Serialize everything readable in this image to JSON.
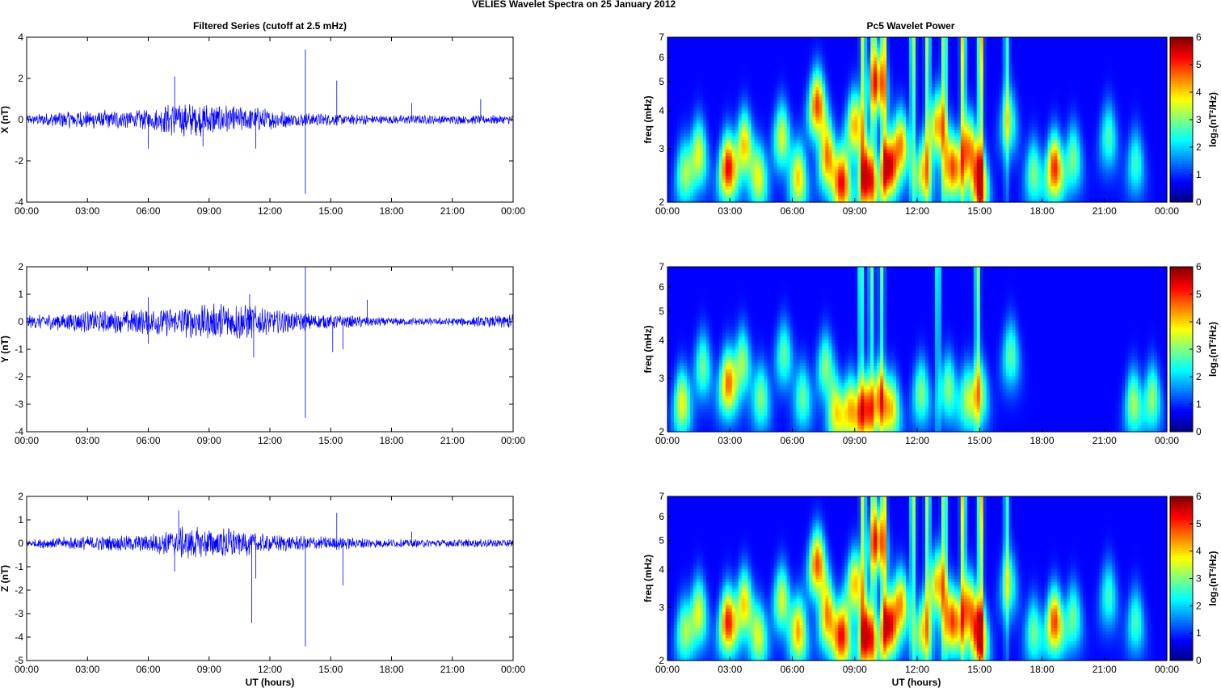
{
  "figure": {
    "suptitle": "VELIES Wavelet Spectra on 25 January   2012",
    "left_title": "Filtered Series (cutoff at 2.5 mHz)",
    "right_title": "Pc5 Wavelet Power",
    "x_label": "UT (hours)"
  },
  "chart_data": [
    {
      "type": "line",
      "id": "x_series",
      "ylabel": "X (nT)",
      "ylim": [
        -4,
        4
      ],
      "yticks": [
        -4,
        -2,
        0,
        2,
        4
      ],
      "xlim_hours": [
        0,
        24
      ],
      "xtick_labels": [
        "00:00",
        "03:00",
        "06:00",
        "09:00",
        "12:00",
        "15:00",
        "18:00",
        "21:00",
        "00:00"
      ],
      "color": "#0000ff",
      "noise_envelope": [
        [
          0,
          0.15
        ],
        [
          2,
          0.3
        ],
        [
          6,
          0.35
        ],
        [
          7.5,
          0.6
        ],
        [
          9,
          0.55
        ],
        [
          11,
          0.45
        ],
        [
          13,
          0.25
        ],
        [
          15,
          0.2
        ],
        [
          18,
          0.15
        ],
        [
          24,
          0.15
        ]
      ],
      "spikes": [
        {
          "t": 7.3,
          "v": 2.1
        },
        {
          "t": 6,
          "v": -1.4
        },
        {
          "t": 8.7,
          "v": -1.3
        },
        {
          "t": 11.3,
          "v": -1.4
        },
        {
          "t": 13.75,
          "v": 3.4
        },
        {
          "t": 13.75,
          "v": -3.6
        },
        {
          "t": 15.3,
          "v": 1.9
        },
        {
          "t": 19,
          "v": 0.8
        },
        {
          "t": 22.4,
          "v": 1.0
        }
      ]
    },
    {
      "type": "line",
      "id": "y_series",
      "ylabel": "Y (nT)",
      "ylim": [
        -4,
        2
      ],
      "yticks": [
        -4,
        -3,
        -2,
        -1,
        0,
        1,
        2
      ],
      "xlim_hours": [
        0,
        24
      ],
      "xtick_labels": [
        "00:00",
        "03:00",
        "06:00",
        "09:00",
        "12:00",
        "15:00",
        "18:00",
        "21:00",
        "00:00"
      ],
      "color": "#0000ff",
      "noise_envelope": [
        [
          0,
          0.15
        ],
        [
          2,
          0.25
        ],
        [
          5,
          0.3
        ],
        [
          8,
          0.4
        ],
        [
          10.5,
          0.5
        ],
        [
          12,
          0.3
        ],
        [
          15,
          0.18
        ],
        [
          18,
          0.1
        ],
        [
          21,
          0.1
        ],
        [
          23,
          0.15
        ],
        [
          24,
          0.2
        ]
      ],
      "spikes": [
        {
          "t": 6,
          "v": 0.9
        },
        {
          "t": 6,
          "v": -0.8
        },
        {
          "t": 11,
          "v": 1.0
        },
        {
          "t": 11.2,
          "v": -1.3
        },
        {
          "t": 13.75,
          "v": 2.0
        },
        {
          "t": 13.75,
          "v": -3.5
        },
        {
          "t": 15.1,
          "v": -1.1
        },
        {
          "t": 15.6,
          "v": -1.0
        },
        {
          "t": 16.8,
          "v": 0.8
        }
      ]
    },
    {
      "type": "line",
      "id": "z_series",
      "ylabel": "Z (nT)",
      "ylim": [
        -5,
        2
      ],
      "yticks": [
        -5,
        -4,
        -3,
        -2,
        -1,
        0,
        1,
        2
      ],
      "xlim_hours": [
        0,
        24
      ],
      "xtick_labels": [
        "00:00",
        "03:00",
        "06:00",
        "09:00",
        "12:00",
        "15:00",
        "18:00",
        "21:00",
        "00:00"
      ],
      "color": "#0000ff",
      "noise_envelope": [
        [
          0,
          0.12
        ],
        [
          2,
          0.2
        ],
        [
          6,
          0.25
        ],
        [
          7.5,
          0.5
        ],
        [
          10,
          0.45
        ],
        [
          12,
          0.25
        ],
        [
          15,
          0.2
        ],
        [
          18,
          0.12
        ],
        [
          24,
          0.12
        ]
      ],
      "spikes": [
        {
          "t": 7.5,
          "v": 1.4
        },
        {
          "t": 7.3,
          "v": -1.2
        },
        {
          "t": 11.1,
          "v": -3.4
        },
        {
          "t": 11.3,
          "v": -1.5
        },
        {
          "t": 13.75,
          "v": -4.4
        },
        {
          "t": 15.3,
          "v": 1.3
        },
        {
          "t": 15.6,
          "v": -1.8
        },
        {
          "t": 19,
          "v": 0.5
        }
      ]
    },
    {
      "type": "heatmap",
      "id": "x_power",
      "ylabel": "freq (mHz)",
      "y_scale": "log",
      "ylim_mhz": [
        2,
        7
      ],
      "yticks": [
        2,
        3,
        4,
        5,
        6,
        7
      ],
      "xlim_hours": [
        0,
        24
      ],
      "xtick_labels": [
        "00:00",
        "03:00",
        "06:00",
        "09:00",
        "12:00",
        "15:00",
        "18:00",
        "21:00",
        "00:00"
      ],
      "colorbar": {
        "label": "log₂(nT²/Hz)",
        "min": 0,
        "max": 6,
        "ticks": [
          0,
          1,
          2,
          3,
          4,
          5,
          6
        ]
      },
      "blobs": [
        {
          "t": 0.8,
          "f": 2.5,
          "p": 2.8
        },
        {
          "t": 1.5,
          "f": 2.9,
          "p": 3.6
        },
        {
          "t": 2.9,
          "f": 2.6,
          "p": 5.6
        },
        {
          "t": 3.7,
          "f": 3.1,
          "p": 4.2
        },
        {
          "t": 4.4,
          "f": 2.4,
          "p": 3.4
        },
        {
          "t": 5.5,
          "f": 3.3,
          "p": 3.5
        },
        {
          "t": 6.3,
          "f": 2.4,
          "p": 4.0
        },
        {
          "t": 7.2,
          "f": 4.2,
          "p": 5.2
        },
        {
          "t": 7.7,
          "f": 2.8,
          "p": 4.6
        },
        {
          "t": 8.4,
          "f": 2.3,
          "p": 5.3
        },
        {
          "t": 9,
          "f": 3.6,
          "p": 4.3
        },
        {
          "t": 9.6,
          "f": 2.4,
          "p": 5.9
        },
        {
          "t": 10.1,
          "f": 5.0,
          "p": 4.3
        },
        {
          "t": 10.6,
          "f": 2.6,
          "p": 5.4
        },
        {
          "t": 11.2,
          "f": 3.1,
          "p": 4.6
        },
        {
          "t": 12.3,
          "f": 2.5,
          "p": 3.8
        },
        {
          "t": 13,
          "f": 3.6,
          "p": 4.4
        },
        {
          "t": 13.7,
          "f": 2.6,
          "p": 4.8
        },
        {
          "t": 14.5,
          "f": 3.0,
          "p": 4.7
        },
        {
          "t": 15,
          "f": 2.3,
          "p": 5.0
        },
        {
          "t": 16.4,
          "f": 3.7,
          "p": 2.6
        },
        {
          "t": 17.6,
          "f": 2.5,
          "p": 2.8
        },
        {
          "t": 18.6,
          "f": 2.6,
          "p": 5.4
        },
        {
          "t": 19.5,
          "f": 2.8,
          "p": 2.8
        },
        {
          "t": 21.2,
          "f": 3.3,
          "p": 2.4
        },
        {
          "t": 22.5,
          "f": 2.7,
          "p": 2.3
        }
      ],
      "streaks": [
        {
          "t": 9.4,
          "p": 3.6
        },
        {
          "t": 9.9,
          "p": 3.2
        },
        {
          "t": 10.4,
          "p": 3.8
        },
        {
          "t": 11.8,
          "p": 3.5
        },
        {
          "t": 12.5,
          "p": 3.4
        },
        {
          "t": 13.3,
          "p": 3.7
        },
        {
          "t": 14.2,
          "p": 4.3
        },
        {
          "t": 15.05,
          "p": 4.8
        },
        {
          "t": 16.3,
          "p": 2.4
        }
      ]
    },
    {
      "type": "heatmap",
      "id": "y_power",
      "ylabel": "freq (mHz)",
      "y_scale": "log",
      "ylim_mhz": [
        2,
        7
      ],
      "yticks": [
        2,
        3,
        4,
        5,
        6,
        7
      ],
      "xlim_hours": [
        0,
        24
      ],
      "xtick_labels": [
        "00:00",
        "03:00",
        "06:00",
        "09:00",
        "12:00",
        "15:00",
        "18:00",
        "21:00",
        "00:00"
      ],
      "colorbar": {
        "label": "log₂(nT²/Hz)",
        "min": 0,
        "max": 6,
        "ticks": [
          0,
          1,
          2,
          3,
          4,
          5,
          6
        ]
      },
      "blobs": [
        {
          "t": 0.7,
          "f": 2.5,
          "p": 3.7
        },
        {
          "t": 1.7,
          "f": 3.3,
          "p": 2.7
        },
        {
          "t": 2.9,
          "f": 2.9,
          "p": 4.6
        },
        {
          "t": 3.6,
          "f": 3.4,
          "p": 3.1
        },
        {
          "t": 4.5,
          "f": 2.6,
          "p": 2.8
        },
        {
          "t": 5.6,
          "f": 3.6,
          "p": 2.6
        },
        {
          "t": 6.5,
          "f": 2.6,
          "p": 2.6
        },
        {
          "t": 7.6,
          "f": 3.3,
          "p": 2.9
        },
        {
          "t": 8.1,
          "f": 2.3,
          "p": 3.6
        },
        {
          "t": 8.8,
          "f": 2.4,
          "p": 4.0
        },
        {
          "t": 9.5,
          "f": 2.4,
          "p": 4.8
        },
        {
          "t": 10.2,
          "f": 2.6,
          "p": 4.1
        },
        {
          "t": 10.8,
          "f": 2.4,
          "p": 3.5
        },
        {
          "t": 12.2,
          "f": 2.7,
          "p": 2.9
        },
        {
          "t": 13.5,
          "f": 2.8,
          "p": 2.9
        },
        {
          "t": 14.4,
          "f": 2.6,
          "p": 2.8
        },
        {
          "t": 15,
          "f": 2.7,
          "p": 3.1
        },
        {
          "t": 16.5,
          "f": 3.6,
          "p": 2.6
        },
        {
          "t": 22.4,
          "f": 2.5,
          "p": 3.1
        },
        {
          "t": 23.3,
          "f": 2.6,
          "p": 3.0
        }
      ],
      "streaks": [
        {
          "t": 9.3,
          "p": 3.0
        },
        {
          "t": 9.8,
          "p": 2.8
        },
        {
          "t": 10.3,
          "p": 2.7
        },
        {
          "t": 13,
          "p": 2.5
        },
        {
          "t": 14.9,
          "p": 3.2
        }
      ]
    },
    {
      "type": "heatmap",
      "id": "z_power",
      "ylabel": "freq (mHz)",
      "y_scale": "log",
      "ylim_mhz": [
        2,
        7
      ],
      "yticks": [
        2,
        3,
        4,
        5,
        6,
        7
      ],
      "xlim_hours": [
        0,
        24
      ],
      "xtick_labels": [
        "00:00",
        "03:00",
        "06:00",
        "09:00",
        "12:00",
        "15:00",
        "18:00",
        "21:00",
        "00:00"
      ],
      "colorbar": {
        "label": "log₂(nT²/Hz)",
        "min": 0,
        "max": 6,
        "ticks": [
          0,
          1,
          2,
          3,
          4,
          5,
          6
        ]
      },
      "blobs": [
        {
          "t": 0.8,
          "f": 2.5,
          "p": 2.8
        },
        {
          "t": 1.5,
          "f": 2.9,
          "p": 3.6
        },
        {
          "t": 2.9,
          "f": 2.7,
          "p": 5.4
        },
        {
          "t": 3.7,
          "f": 3.1,
          "p": 4.1
        },
        {
          "t": 4.4,
          "f": 2.4,
          "p": 3.3
        },
        {
          "t": 5.5,
          "f": 3.2,
          "p": 3.5
        },
        {
          "t": 6.3,
          "f": 2.5,
          "p": 4.3
        },
        {
          "t": 7.2,
          "f": 4.2,
          "p": 5.1
        },
        {
          "t": 7.7,
          "f": 2.8,
          "p": 4.5
        },
        {
          "t": 8.4,
          "f": 2.4,
          "p": 5.2
        },
        {
          "t": 9,
          "f": 3.6,
          "p": 4.2
        },
        {
          "t": 9.6,
          "f": 2.4,
          "p": 5.9
        },
        {
          "t": 10.1,
          "f": 5.0,
          "p": 4.3
        },
        {
          "t": 10.6,
          "f": 2.6,
          "p": 5.3
        },
        {
          "t": 11.2,
          "f": 3.1,
          "p": 4.5
        },
        {
          "t": 12.3,
          "f": 2.5,
          "p": 3.7
        },
        {
          "t": 13,
          "f": 3.6,
          "p": 4.3
        },
        {
          "t": 13.7,
          "f": 2.7,
          "p": 4.9
        },
        {
          "t": 14.5,
          "f": 3.0,
          "p": 4.6
        },
        {
          "t": 15,
          "f": 2.4,
          "p": 4.9
        },
        {
          "t": 16.4,
          "f": 3.6,
          "p": 2.5
        },
        {
          "t": 17.6,
          "f": 2.5,
          "p": 2.7
        },
        {
          "t": 18.6,
          "f": 2.7,
          "p": 5.2
        },
        {
          "t": 19.5,
          "f": 2.8,
          "p": 2.7
        },
        {
          "t": 21.2,
          "f": 3.3,
          "p": 2.3
        },
        {
          "t": 22.5,
          "f": 2.7,
          "p": 2.4
        }
      ],
      "streaks": [
        {
          "t": 9.4,
          "p": 3.6
        },
        {
          "t": 9.9,
          "p": 3.2
        },
        {
          "t": 10.4,
          "p": 3.8
        },
        {
          "t": 11.8,
          "p": 3.5
        },
        {
          "t": 12.5,
          "p": 3.4
        },
        {
          "t": 13.3,
          "p": 3.7
        },
        {
          "t": 14.2,
          "p": 4.3
        },
        {
          "t": 15.05,
          "p": 4.8
        },
        {
          "t": 16.3,
          "p": 2.4
        }
      ]
    }
  ]
}
